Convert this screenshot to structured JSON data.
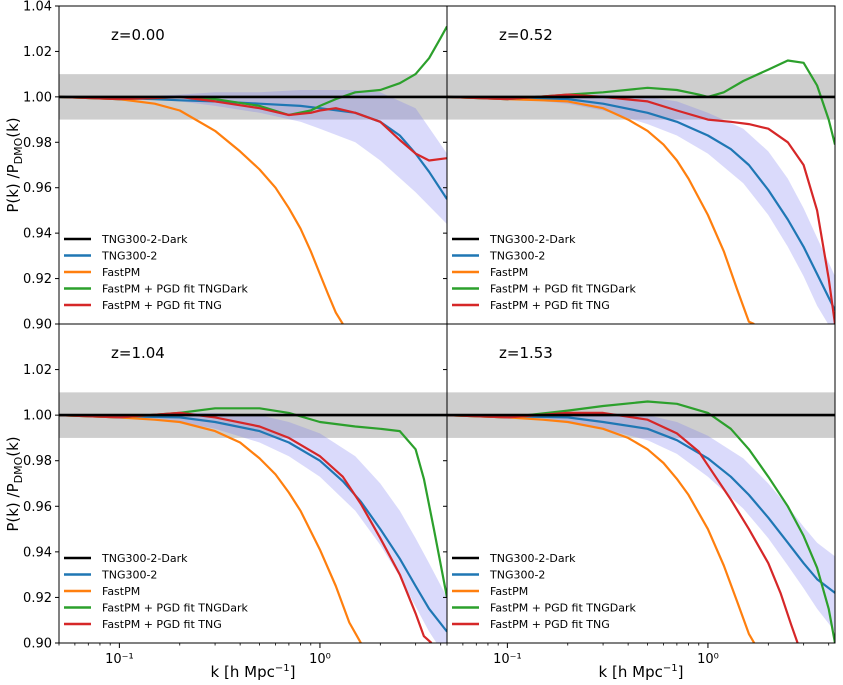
{
  "chart_data": {
    "type": "line",
    "layout": "2x2 shared axes",
    "xscale": "log",
    "xlim": [
      0.05,
      4.3
    ],
    "ylim": [
      0.9,
      1.04
    ],
    "xticks": [
      {
        "value": 0.1,
        "label": "10⁻¹"
      },
      {
        "value": 1,
        "label": "10⁰"
      }
    ],
    "yticks": [
      {
        "value": 0.9,
        "label": "0.90"
      },
      {
        "value": 0.92,
        "label": "0.92"
      },
      {
        "value": 0.94,
        "label": "0.94"
      },
      {
        "value": 0.96,
        "label": "0.96"
      },
      {
        "value": 0.98,
        "label": "0.98"
      },
      {
        "value": 1.0,
        "label": "1.00"
      },
      {
        "value": 1.02,
        "label": "1.02"
      },
      {
        "value": 1.04,
        "label": "1.04"
      }
    ],
    "xlabel": {
      "base": "k [h Mpc",
      "sup": "−1",
      "tail": "]"
    },
    "ylabel": {
      "a": "P(k) /P",
      "sub": "DMO",
      "b": "(k)"
    },
    "gray_band": [
      0.99,
      1.01
    ],
    "colors": {
      "TNG300-2-Dark": "#000000",
      "TNG300-2": "#1f77b4",
      "FastPM": "#ff7f0e",
      "FastPM + PGD fit TNGDark": "#2ca02c",
      "FastPM + PGD fit TNG": "#d62728",
      "band": "#bebebe",
      "tng_band": "#7b7bf0"
    },
    "legend": [
      "TNG300-2-Dark",
      "TNG300-2",
      "FastPM",
      "FastPM + PGD fit TNGDark",
      "FastPM + PGD fit TNG"
    ],
    "panels": [
      {
        "z_label": "z=0.00",
        "series": [
          {
            "name": "TNG300-2-Dark",
            "x": [
              0.05,
              4.3
            ],
            "y": [
              1.0,
              1.0
            ]
          },
          {
            "name": "TNG300-2",
            "x": [
              0.05,
              0.1,
              0.15,
              0.2,
              0.3,
              0.5,
              0.8,
              1.0,
              1.5,
              2.0,
              2.5,
              3.0,
              3.5,
              4.3
            ],
            "y": [
              1.0,
              0.9995,
              0.999,
              0.9985,
              0.998,
              0.997,
              0.996,
              0.995,
              0.993,
              0.989,
              0.983,
              0.975,
              0.967,
              0.955
            ]
          },
          {
            "name": "FastPM",
            "x": [
              0.05,
              0.1,
              0.15,
              0.2,
              0.3,
              0.4,
              0.5,
              0.6,
              0.7,
              0.8,
              0.9,
              1.0,
              1.1,
              1.2,
              1.3
            ],
            "y": [
              1.0,
              0.999,
              0.997,
              0.994,
              0.985,
              0.976,
              0.968,
              0.96,
              0.951,
              0.942,
              0.932,
              0.922,
              0.913,
              0.905,
              0.9
            ]
          },
          {
            "name": "FastPM + PGD fit TNGDark",
            "x": [
              0.05,
              0.1,
              0.15,
              0.2,
              0.3,
              0.5,
              0.7,
              0.9,
              1.0,
              1.2,
              1.5,
              2.0,
              2.5,
              3.0,
              3.5,
              4.0,
              4.3
            ],
            "y": [
              1.0,
              0.999,
              0.9995,
              1.0,
              0.999,
              0.996,
              0.992,
              0.994,
              0.996,
              0.999,
              1.002,
              1.003,
              1.006,
              1.01,
              1.017,
              1.026,
              1.031
            ]
          },
          {
            "name": "FastPM + PGD fit TNG",
            "x": [
              0.05,
              0.1,
              0.15,
              0.2,
              0.3,
              0.5,
              0.7,
              0.9,
              1.0,
              1.2,
              1.5,
              2.0,
              2.5,
              3.0,
              3.5,
              4.3
            ],
            "y": [
              1.0,
              0.999,
              0.9995,
              1.0,
              0.998,
              0.995,
              0.992,
              0.993,
              0.994,
              0.995,
              0.993,
              0.989,
              0.981,
              0.975,
              0.972,
              0.973
            ]
          }
        ],
        "tng_band": {
          "x": [
            0.05,
            0.1,
            0.2,
            0.3,
            0.5,
            0.8,
            1.0,
            1.5,
            2.0,
            3.0,
            4.3
          ],
          "lower": [
            1.0,
            0.9995,
            0.998,
            0.996,
            0.993,
            0.989,
            0.986,
            0.98,
            0.972,
            0.958,
            0.944
          ],
          "upper": [
            1.0,
            0.9998,
            1.001,
            1.002,
            1.002,
            1.003,
            1.003,
            1.003,
            1.002,
            0.995,
            0.975
          ]
        }
      },
      {
        "z_label": "z=0.52",
        "series": [
          {
            "name": "TNG300-2-Dark",
            "x": [
              0.05,
              4.3
            ],
            "y": [
              1.0,
              1.0
            ]
          },
          {
            "name": "TNG300-2",
            "x": [
              0.05,
              0.1,
              0.2,
              0.3,
              0.5,
              0.7,
              1.0,
              1.3,
              1.6,
              2.0,
              2.5,
              3.0,
              3.5,
              4.3
            ],
            "y": [
              1.0,
              0.9995,
              0.999,
              0.997,
              0.993,
              0.989,
              0.983,
              0.977,
              0.97,
              0.959,
              0.946,
              0.934,
              0.922,
              0.906
            ]
          },
          {
            "name": "FastPM",
            "x": [
              0.05,
              0.1,
              0.15,
              0.2,
              0.3,
              0.4,
              0.5,
              0.6,
              0.7,
              0.8,
              1.0,
              1.2,
              1.4,
              1.6,
              1.7
            ],
            "y": [
              1.0,
              0.999,
              0.9985,
              0.998,
              0.995,
              0.99,
              0.985,
              0.979,
              0.972,
              0.964,
              0.948,
              0.932,
              0.915,
              0.901,
              0.9
            ]
          },
          {
            "name": "FastPM + PGD fit TNGDark",
            "x": [
              0.05,
              0.1,
              0.2,
              0.3,
              0.5,
              0.7,
              0.9,
              1.0,
              1.2,
              1.5,
              2.0,
              2.5,
              3.0,
              3.5,
              4.0,
              4.3
            ],
            "y": [
              1.0,
              0.999,
              1.001,
              1.002,
              1.004,
              1.003,
              1.001,
              1.0,
              1.002,
              1.007,
              1.012,
              1.016,
              1.015,
              1.005,
              0.99,
              0.979
            ]
          },
          {
            "name": "FastPM + PGD fit TNG",
            "x": [
              0.05,
              0.1,
              0.2,
              0.3,
              0.5,
              0.7,
              1.0,
              1.3,
              1.6,
              2.0,
              2.5,
              3.0,
              3.5,
              4.0,
              4.3
            ],
            "y": [
              1.0,
              0.999,
              1.001,
              1.0,
              0.998,
              0.994,
              0.99,
              0.989,
              0.988,
              0.986,
              0.98,
              0.97,
              0.95,
              0.92,
              0.9
            ]
          }
        ],
        "tng_band": {
          "x": [
            0.05,
            0.1,
            0.2,
            0.3,
            0.5,
            0.7,
            1.0,
            1.5,
            2.0,
            2.5,
            3.0,
            3.5,
            4.3
          ],
          "lower": [
            1.0,
            0.9995,
            0.997,
            0.994,
            0.988,
            0.983,
            0.975,
            0.962,
            0.948,
            0.934,
            0.921,
            0.908,
            0.895
          ],
          "upper": [
            1.0,
            1.0,
            1.001,
            1.001,
            1.0,
            0.998,
            0.993,
            0.986,
            0.976,
            0.964,
            0.951,
            0.938,
            0.921
          ]
        }
      },
      {
        "z_label": "z=1.04",
        "series": [
          {
            "name": "TNG300-2-Dark",
            "x": [
              0.05,
              4.3
            ],
            "y": [
              1.0,
              1.0
            ]
          },
          {
            "name": "TNG300-2",
            "x": [
              0.05,
              0.1,
              0.2,
              0.3,
              0.5,
              0.7,
              1.0,
              1.3,
              1.6,
              2.0,
              2.5,
              3.0,
              3.5,
              4.3
            ],
            "y": [
              1.0,
              0.9995,
              0.999,
              0.997,
              0.993,
              0.988,
              0.98,
              0.971,
              0.962,
              0.95,
              0.937,
              0.925,
              0.915,
              0.905
            ]
          },
          {
            "name": "FastPM",
            "x": [
              0.05,
              0.1,
              0.15,
              0.2,
              0.3,
              0.4,
              0.5,
              0.6,
              0.7,
              0.8,
              1.0,
              1.2,
              1.4,
              1.6
            ],
            "y": [
              1.0,
              0.999,
              0.998,
              0.997,
              0.993,
              0.988,
              0.981,
              0.974,
              0.966,
              0.958,
              0.941,
              0.925,
              0.909,
              0.9
            ]
          },
          {
            "name": "FastPM + PGD fit TNGDark",
            "x": [
              0.05,
              0.1,
              0.2,
              0.3,
              0.5,
              0.7,
              1.0,
              1.5,
              2.0,
              2.5,
              3.0,
              3.3,
              3.7,
              4.3
            ],
            "y": [
              1.0,
              0.999,
              1.001,
              1.003,
              1.003,
              1.001,
              0.997,
              0.995,
              0.994,
              0.993,
              0.985,
              0.972,
              0.95,
              0.92
            ]
          },
          {
            "name": "FastPM + PGD fit TNG",
            "x": [
              0.05,
              0.1,
              0.2,
              0.3,
              0.5,
              0.7,
              1.0,
              1.3,
              1.6,
              2.0,
              2.5,
              3.0,
              3.3,
              3.6
            ],
            "y": [
              1.0,
              0.999,
              1.001,
              0.999,
              0.995,
              0.99,
              0.982,
              0.973,
              0.961,
              0.946,
              0.93,
              0.913,
              0.903,
              0.9
            ]
          }
        ],
        "tng_band": {
          "x": [
            0.05,
            0.1,
            0.2,
            0.3,
            0.5,
            0.7,
            1.0,
            1.5,
            2.0,
            2.5,
            3.0,
            3.5,
            4.3
          ],
          "lower": [
            1.0,
            0.9995,
            0.997,
            0.994,
            0.988,
            0.982,
            0.973,
            0.958,
            0.943,
            0.929,
            0.916,
            0.905,
            0.893
          ],
          "upper": [
            1.0,
            1.0,
            1.001,
            1.001,
            1.0,
            0.997,
            0.992,
            0.982,
            0.97,
            0.958,
            0.946,
            0.935,
            0.92
          ]
        }
      },
      {
        "z_label": "z=1.53",
        "series": [
          {
            "name": "TNG300-2-Dark",
            "x": [
              0.05,
              4.3
            ],
            "y": [
              1.0,
              1.0
            ]
          },
          {
            "name": "TNG300-2",
            "x": [
              0.05,
              0.1,
              0.2,
              0.3,
              0.5,
              0.7,
              1.0,
              1.3,
              1.6,
              2.0,
              2.5,
              3.0,
              3.5,
              4.3
            ],
            "y": [
              1.0,
              0.9995,
              0.999,
              0.997,
              0.994,
              0.989,
              0.981,
              0.973,
              0.965,
              0.955,
              0.944,
              0.935,
              0.928,
              0.922
            ]
          },
          {
            "name": "FastPM",
            "x": [
              0.05,
              0.1,
              0.15,
              0.2,
              0.3,
              0.4,
              0.5,
              0.6,
              0.7,
              0.8,
              1.0,
              1.2,
              1.4,
              1.6,
              1.7
            ],
            "y": [
              1.0,
              0.999,
              0.998,
              0.997,
              0.994,
              0.99,
              0.985,
              0.979,
              0.972,
              0.965,
              0.95,
              0.934,
              0.918,
              0.904,
              0.9
            ]
          },
          {
            "name": "FastPM + PGD fit TNGDark",
            "x": [
              0.05,
              0.1,
              0.2,
              0.3,
              0.5,
              0.7,
              1.0,
              1.3,
              1.6,
              2.0,
              2.5,
              3.0,
              3.5,
              4.0,
              4.3
            ],
            "y": [
              1.0,
              0.999,
              1.002,
              1.004,
              1.006,
              1.005,
              1.001,
              0.994,
              0.985,
              0.973,
              0.96,
              0.947,
              0.933,
              0.915,
              0.9
            ]
          },
          {
            "name": "FastPM + PGD fit TNG",
            "x": [
              0.05,
              0.1,
              0.2,
              0.3,
              0.5,
              0.7,
              0.9,
              1.0,
              1.3,
              1.6,
              2.0,
              2.3,
              2.6,
              2.8
            ],
            "y": [
              1.0,
              0.999,
              1.001,
              1.001,
              0.998,
              0.992,
              0.984,
              0.978,
              0.963,
              0.95,
              0.935,
              0.922,
              0.908,
              0.9
            ]
          }
        ],
        "tng_band": {
          "x": [
            0.05,
            0.1,
            0.2,
            0.3,
            0.5,
            0.7,
            1.0,
            1.5,
            2.0,
            2.5,
            3.0,
            3.5,
            4.3
          ],
          "lower": [
            1.0,
            0.9995,
            0.997,
            0.994,
            0.989,
            0.983,
            0.973,
            0.959,
            0.946,
            0.934,
            0.924,
            0.915,
            0.905
          ],
          "upper": [
            1.0,
            1.0,
            1.001,
            1.001,
            1.0,
            0.997,
            0.991,
            0.981,
            0.97,
            0.96,
            0.951,
            0.944,
            0.938
          ]
        }
      }
    ]
  }
}
